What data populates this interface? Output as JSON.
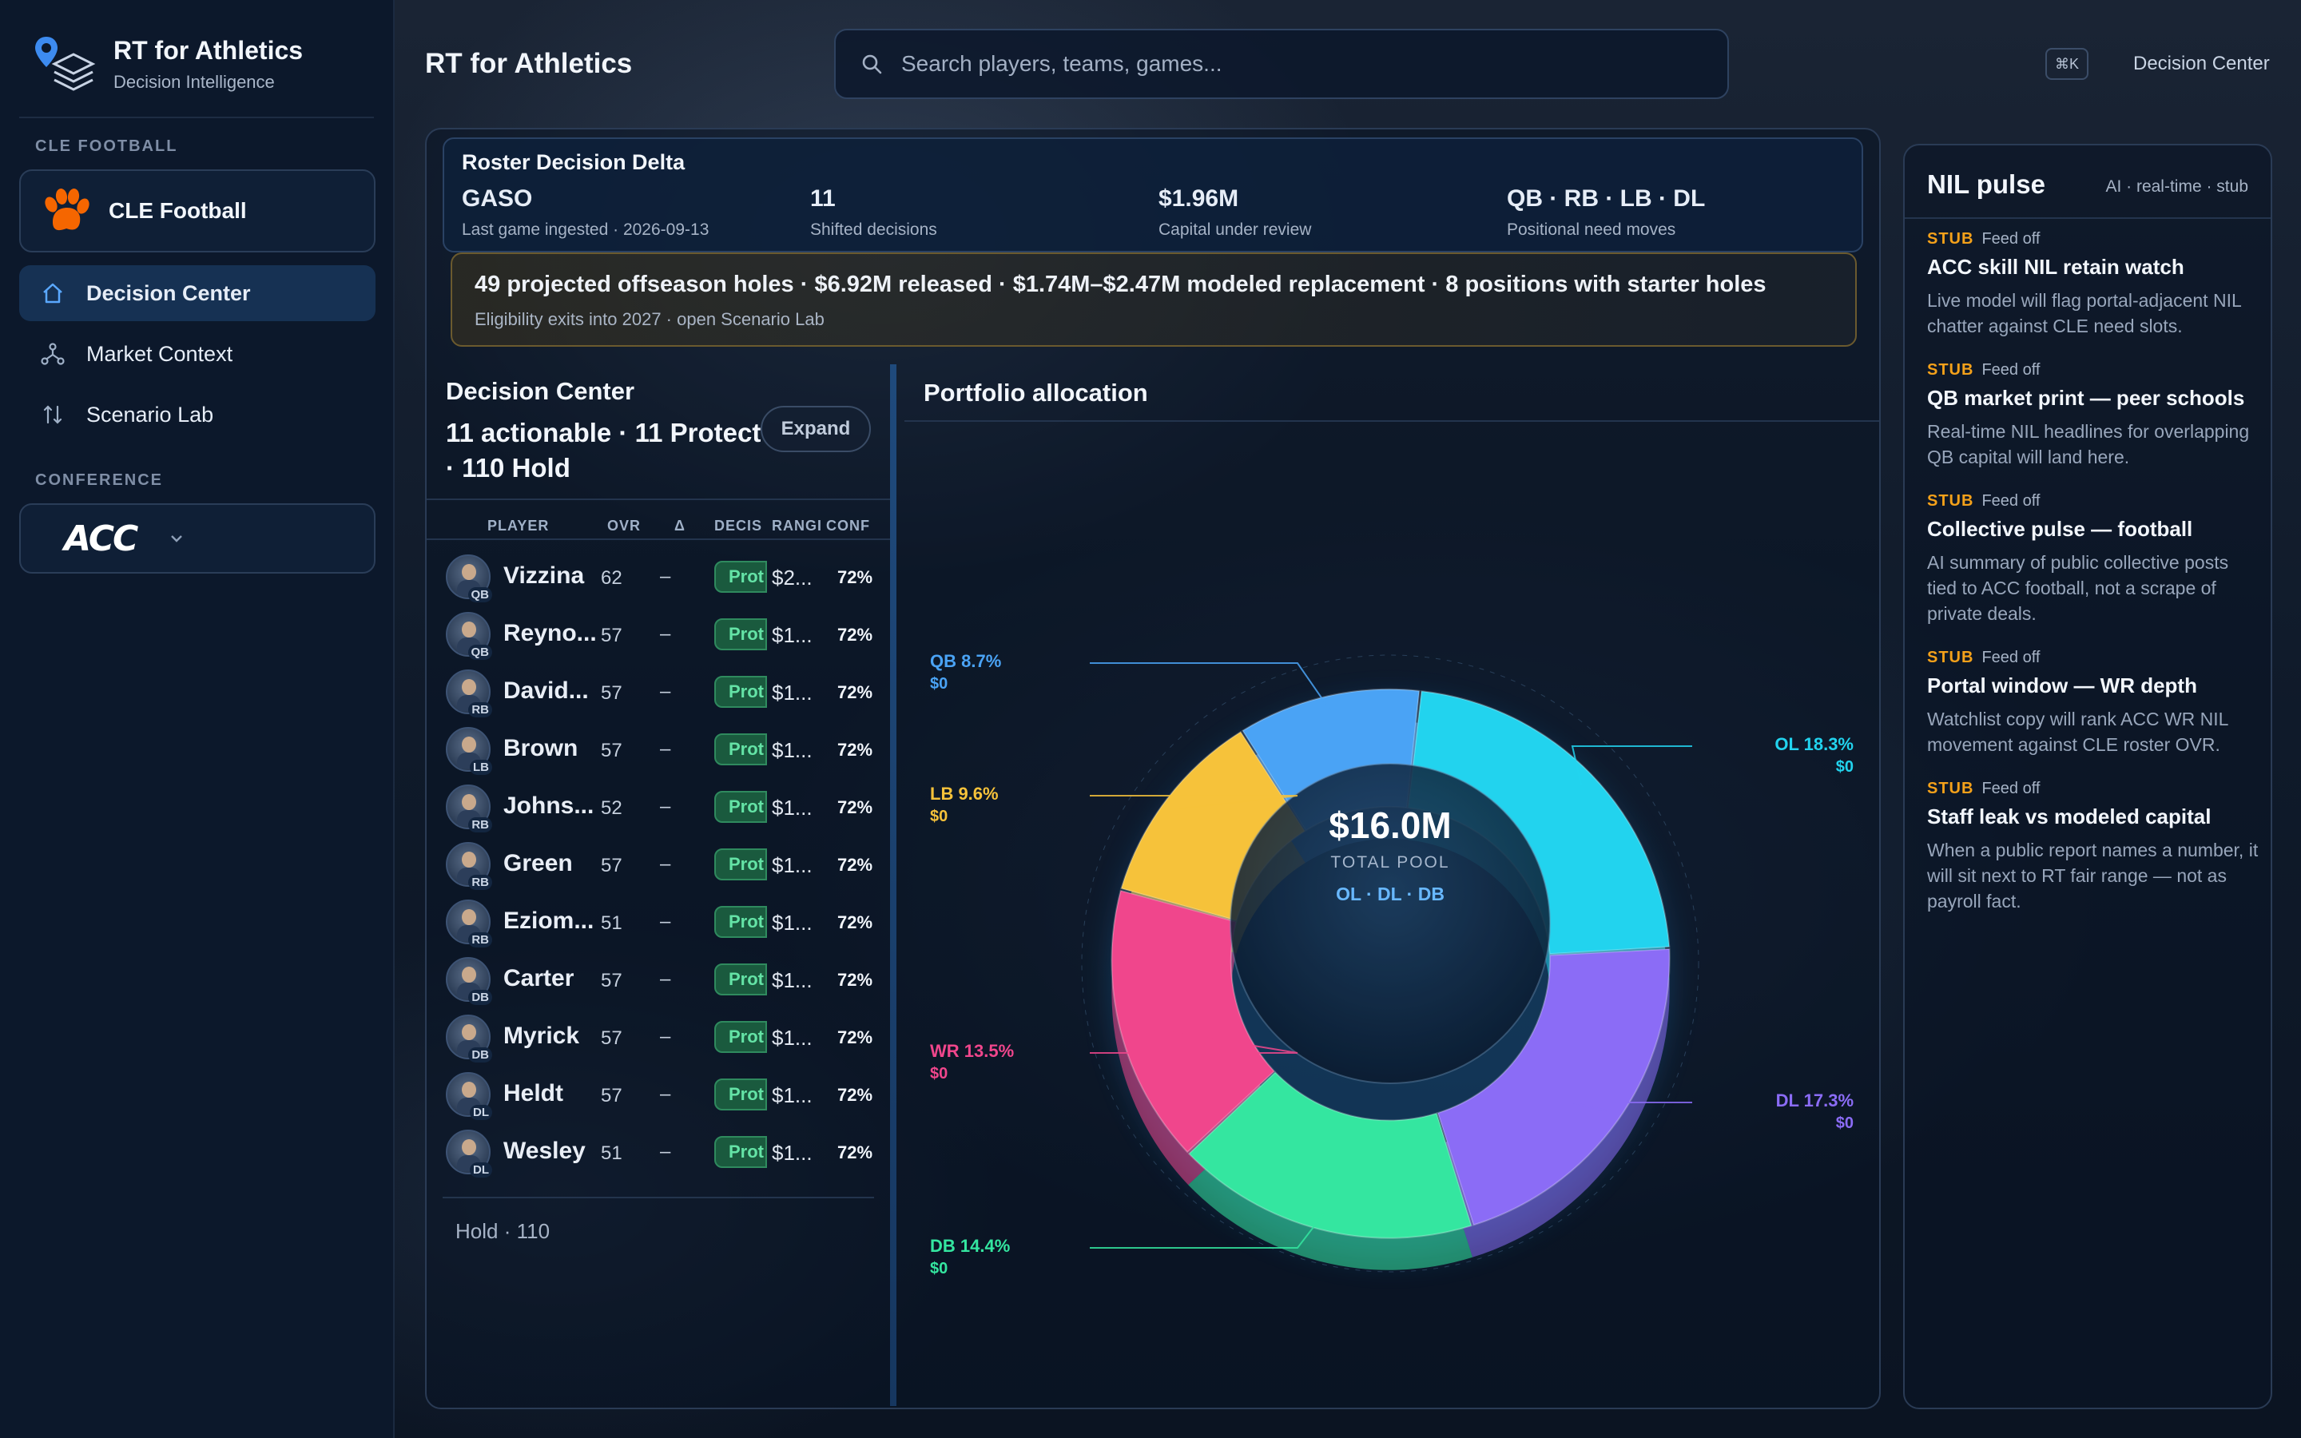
{
  "brand": {
    "title": "RT for Athletics",
    "subtitle": "Decision Intelligence"
  },
  "sidebar": {
    "section_team": "CLE FOOTBALL",
    "team": {
      "label": "CLE Football",
      "icon": "paw-icon",
      "color": "#f56600"
    },
    "nav": [
      {
        "label": "Decision Center",
        "icon": "home-icon",
        "active": true
      },
      {
        "label": "Market Context",
        "icon": "network-icon",
        "active": false
      },
      {
        "label": "Scenario Lab",
        "icon": "sort-arrows-icon",
        "active": false
      }
    ],
    "section_conference": "CONFERENCE",
    "conference": {
      "logo_text": "ACC"
    }
  },
  "header": {
    "title": "RT for Athletics",
    "search_placeholder": "Search players, teams, games...",
    "shortcut": "⌘K",
    "link": "Decision Center"
  },
  "delta": {
    "title": "Roster Decision Delta",
    "stats": [
      {
        "value": "GASO",
        "label": "Last game ingested · 2026-09-13"
      },
      {
        "value": "11",
        "label": "Shifted decisions"
      },
      {
        "value": "$1.96M",
        "label": "Capital under review"
      },
      {
        "value": "QB · RB · LB · DL",
        "label": "Positional need moves"
      }
    ]
  },
  "holes": {
    "headline": "49 projected offseason holes · $6.92M released · $1.74M–$2.47M modeled replacement · 8 positions with starter holes",
    "sub": "Eligibility exits into 2027 · open Scenario Lab"
  },
  "decision_center": {
    "title": "Decision Center",
    "summary": "11 actionable · 11 Protect · 110 Hold",
    "expand_label": "Expand",
    "columns": [
      "PLAYER",
      "OVR",
      "Δ",
      "DECIS",
      "RANGI",
      "CONF"
    ],
    "rows": [
      {
        "name": "Vizzina",
        "pos": "QB",
        "ovr": "62",
        "delta": "–",
        "decision": "Prot",
        "range": "$2...",
        "conf": "72%"
      },
      {
        "name": "Reyno...",
        "pos": "QB",
        "ovr": "57",
        "delta": "–",
        "decision": "Prot",
        "range": "$1...",
        "conf": "72%"
      },
      {
        "name": "David...",
        "pos": "RB",
        "ovr": "57",
        "delta": "–",
        "decision": "Prot",
        "range": "$1...",
        "conf": "72%"
      },
      {
        "name": "Brown",
        "pos": "LB",
        "ovr": "57",
        "delta": "–",
        "decision": "Prot",
        "range": "$1...",
        "conf": "72%"
      },
      {
        "name": "Johns...",
        "pos": "RB",
        "ovr": "52",
        "delta": "–",
        "decision": "Prot",
        "range": "$1...",
        "conf": "72%"
      },
      {
        "name": "Green",
        "pos": "RB",
        "ovr": "57",
        "delta": "–",
        "decision": "Prot",
        "range": "$1...",
        "conf": "72%"
      },
      {
        "name": "Eziom...",
        "pos": "RB",
        "ovr": "51",
        "delta": "–",
        "decision": "Prot",
        "range": "$1...",
        "conf": "72%"
      },
      {
        "name": "Carter",
        "pos": "DB",
        "ovr": "57",
        "delta": "–",
        "decision": "Prot",
        "range": "$1...",
        "conf": "72%"
      },
      {
        "name": "Myrick",
        "pos": "DB",
        "ovr": "57",
        "delta": "–",
        "decision": "Prot",
        "range": "$1...",
        "conf": "72%"
      },
      {
        "name": "Heldt",
        "pos": "DL",
        "ovr": "57",
        "delta": "–",
        "decision": "Prot",
        "range": "$1...",
        "conf": "72%"
      },
      {
        "name": "Wesley",
        "pos": "DL",
        "ovr": "51",
        "delta": "–",
        "decision": "Prot",
        "range": "$1...",
        "conf": "72%"
      }
    ],
    "hold_label": "Hold · 110"
  },
  "portfolio": {
    "title": "Portfolio allocation",
    "center_value": "$16.0M",
    "center_label": "TOTAL POOL",
    "center_positions": "OL · DL · DB"
  },
  "chart_data": {
    "type": "pie",
    "categories": [
      "OL",
      "DL",
      "DB",
      "WR",
      "LB",
      "QB"
    ],
    "values": [
      18.3,
      17.3,
      14.4,
      13.5,
      9.6,
      8.7
    ],
    "labels": [
      "OL 18.3%",
      "DL 17.3%",
      "DB 14.4%",
      "WR 13.5%",
      "LB 9.6%",
      "QB 8.7%"
    ],
    "amounts": [
      "$0",
      "$0",
      "$0",
      "$0",
      "$0",
      "$0"
    ],
    "colors": [
      "#22d3ee",
      "#8b6cf6",
      "#34e6a0",
      "#f0468c",
      "#f6c23a",
      "#4aa3f5"
    ]
  },
  "nil": {
    "title": "NIL pulse",
    "tag": "AI · real-time · stub",
    "items": [
      {
        "stub": "STUB",
        "meta": "Feed off",
        "title": "ACC skill NIL retain watch",
        "desc": "Live model will flag portal-adjacent NIL chatter against CLE need slots."
      },
      {
        "stub": "STUB",
        "meta": "Feed off",
        "title": "QB market print — peer schools",
        "desc": "Real-time NIL headlines for overlapping QB capital will land here."
      },
      {
        "stub": "STUB",
        "meta": "Feed off",
        "title": "Collective pulse — football",
        "desc": "AI summary of public collective posts tied to ACC football, not a scrape of private deals."
      },
      {
        "stub": "STUB",
        "meta": "Feed off",
        "title": "Portal window — WR depth",
        "desc": "Watchlist copy will rank ACC WR NIL movement against CLE roster OVR."
      },
      {
        "stub": "STUB",
        "meta": "Feed off",
        "title": "Staff leak vs modeled capital",
        "desc": "When a public report names a number, it will sit next to RT fair range — not as payroll fact."
      }
    ]
  }
}
